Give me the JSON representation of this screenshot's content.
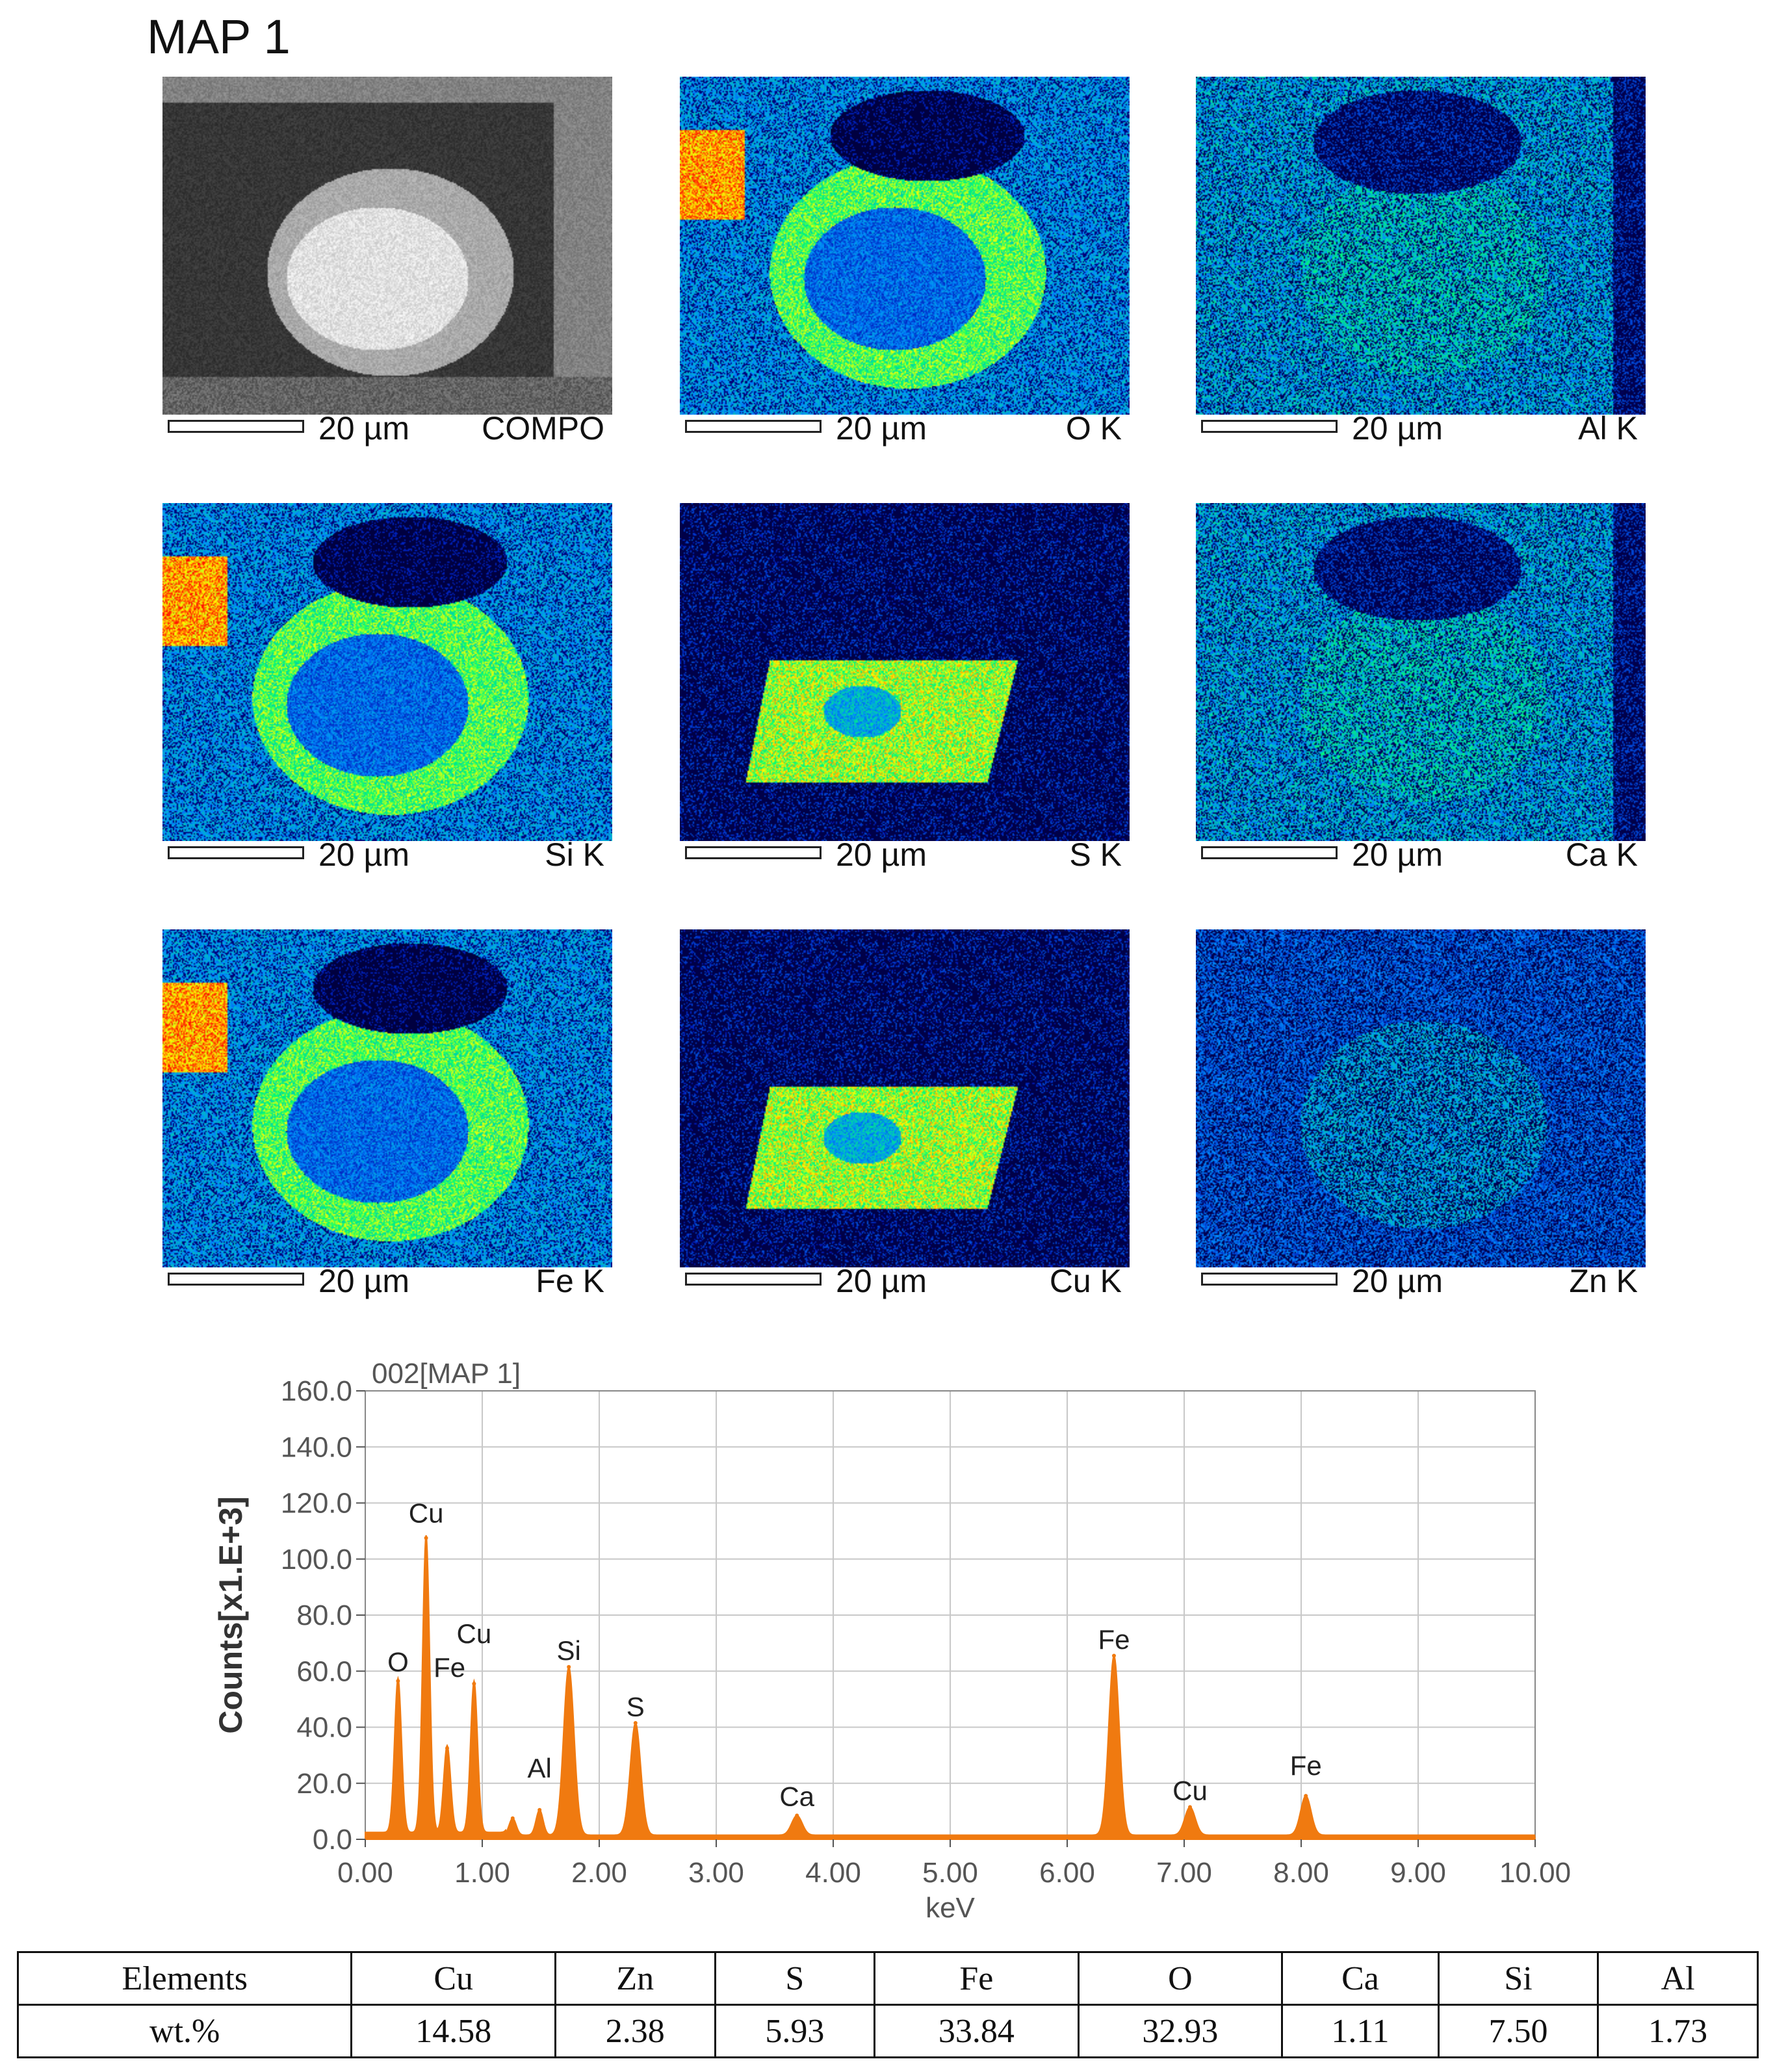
{
  "figure": {
    "title": "MAP 1"
  },
  "maps": [
    {
      "scale_label": "20 µm",
      "label": "COMPO",
      "kind": "sem"
    },
    {
      "scale_label": "20 µm",
      "label": "O K",
      "kind": "o"
    },
    {
      "scale_label": "20 µm",
      "label": "Al K",
      "kind": "al"
    },
    {
      "scale_label": "20 µm",
      "label": "Si K",
      "kind": "si"
    },
    {
      "scale_label": "20 µm",
      "label": "S K",
      "kind": "s"
    },
    {
      "scale_label": "20 µm",
      "label": "Ca K",
      "kind": "ca"
    },
    {
      "scale_label": "20 µm",
      "label": "Fe K",
      "kind": "fe"
    },
    {
      "scale_label": "20 µm",
      "label": "Cu K",
      "kind": "cu"
    },
    {
      "scale_label": "20 µm",
      "label": "Zn K",
      "kind": "zn"
    }
  ],
  "colors": {
    "spectrum": "#f07a10",
    "map_low": "#00003a",
    "map_high": "#ff0000",
    "grid": "#c8c8c8"
  },
  "chart_data": {
    "type": "area",
    "title": "002[MAP 1]",
    "xlabel": "keV",
    "ylabel": "Counts[x1.E+3]",
    "xlim": [
      0,
      10
    ],
    "ylim": [
      0,
      160
    ],
    "grid": true,
    "x_ticks": [
      "0.00",
      "1.00",
      "2.00",
      "3.00",
      "4.00",
      "5.00",
      "6.00",
      "7.00",
      "8.00",
      "9.00",
      "10.00"
    ],
    "y_ticks": [
      "0.0",
      "20.0",
      "40.0",
      "60.0",
      "80.0",
      "100.0",
      "120.0",
      "140.0",
      "160.0"
    ],
    "baseline": 1.5,
    "peaks": [
      {
        "x": 0.28,
        "y": 55
      },
      {
        "x": 0.52,
        "y": 106
      },
      {
        "x": 0.7,
        "y": 31
      },
      {
        "x": 0.93,
        "y": 54
      },
      {
        "x": 1.26,
        "y": 6
      },
      {
        "x": 1.49,
        "y": 9
      },
      {
        "x": 1.74,
        "y": 60
      },
      {
        "x": 2.31,
        "y": 40
      },
      {
        "x": 3.69,
        "y": 7
      },
      {
        "x": 6.4,
        "y": 64
      },
      {
        "x": 7.05,
        "y": 10
      },
      {
        "x": 8.04,
        "y": 14
      }
    ],
    "annotations": [
      {
        "text": "O",
        "x": 0.28,
        "y": 60
      },
      {
        "text": "Cu",
        "x": 0.52,
        "y": 113
      },
      {
        "text": "Fe",
        "x": 0.72,
        "y": 58
      },
      {
        "text": "Cu",
        "x": 0.93,
        "y": 70
      },
      {
        "text": "Al",
        "x": 1.49,
        "y": 22
      },
      {
        "text": "Si",
        "x": 1.74,
        "y": 64
      },
      {
        "text": "S",
        "x": 2.31,
        "y": 44
      },
      {
        "text": "Ca",
        "x": 3.69,
        "y": 12
      },
      {
        "text": "Fe",
        "x": 6.4,
        "y": 68
      },
      {
        "text": "Cu",
        "x": 7.05,
        "y": 14
      },
      {
        "text": "Fe",
        "x": 8.04,
        "y": 23
      }
    ]
  },
  "table": {
    "header": [
      "Elements",
      "Cu",
      "Zn",
      "S",
      "Fe",
      "O",
      "Ca",
      "Si",
      "Al"
    ],
    "row": [
      "wt.%",
      "14.58",
      "2.38",
      "5.93",
      "33.84",
      "32.93",
      "1.11",
      "7.50",
      "1.73"
    ]
  }
}
